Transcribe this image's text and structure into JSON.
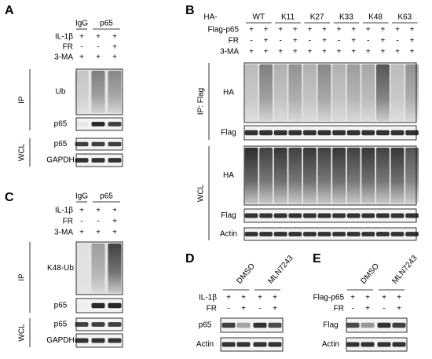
{
  "panels": [
    {
      "label": "A",
      "headers": [
        "IgG",
        "p65"
      ],
      "rows": [
        {
          "name": "IL-1β",
          "signs": [
            "+",
            "+",
            "+"
          ]
        },
        {
          "name": "FR",
          "signs": [
            "-",
            "-",
            "+"
          ]
        },
        {
          "name": "3-MA",
          "signs": [
            "+",
            "+",
            "+"
          ]
        }
      ],
      "groups": [
        {
          "name": "IP",
          "blots": [
            "Ub",
            "p65"
          ]
        },
        {
          "name": "WCL",
          "blots": [
            "p65",
            "GAPDH"
          ]
        }
      ]
    },
    {
      "label": "B",
      "header_prefix": "HA-",
      "headers": [
        "WT",
        "K11",
        "K27",
        "K33",
        "K48",
        "K63"
      ],
      "rows": [
        {
          "name": "Flag-p65",
          "signs": [
            "+",
            "+",
            "+",
            "+",
            "+",
            "+",
            "+",
            "+",
            "+",
            "+",
            "+",
            "+"
          ]
        },
        {
          "name": "FR",
          "signs": [
            "-",
            "+",
            "-",
            "+",
            "-",
            "+",
            "-",
            "+",
            "-",
            "+",
            "-",
            "+"
          ]
        },
        {
          "name": "3-MA",
          "signs": [
            "+",
            "+",
            "+",
            "+",
            "+",
            "+",
            "+",
            "+",
            "+",
            "+",
            "+",
            "+"
          ]
        }
      ],
      "groups": [
        {
          "name": "IP: Flag",
          "blots": [
            "HA",
            "Flag"
          ]
        },
        {
          "name": "WCL",
          "blots": [
            "HA",
            "Flag",
            "Actin"
          ]
        }
      ]
    },
    {
      "label": "C",
      "headers": [
        "IgG",
        "p65"
      ],
      "rows": [
        {
          "name": "IL-1β",
          "signs": [
            "+",
            "+",
            "+"
          ]
        },
        {
          "name": "FR",
          "signs": [
            "-",
            "-",
            "+"
          ]
        },
        {
          "name": "3-MA",
          "signs": [
            "+",
            "+",
            "+"
          ]
        }
      ],
      "groups": [
        {
          "name": "IP",
          "blots": [
            "K48-Ub",
            "p65"
          ]
        },
        {
          "name": "WCL",
          "blots": [
            "p65",
            "GAPDH"
          ]
        }
      ]
    },
    {
      "label": "D",
      "headers": [
        "DMSO",
        "MLN7243"
      ],
      "rows": [
        {
          "name": "IL-1β",
          "signs": [
            "+",
            "+",
            "+",
            "+"
          ]
        },
        {
          "name": "FR",
          "signs": [
            "-",
            "+",
            "-",
            "+"
          ]
        }
      ],
      "groups": [
        {
          "name": null,
          "blots": [
            "p65",
            "Actin"
          ]
        }
      ]
    },
    {
      "label": "E",
      "headers": [
        "DMSO",
        "MLN7243"
      ],
      "rows": [
        {
          "name": "Flag-p65",
          "signs": [
            "+",
            "+",
            "+",
            "+"
          ]
        },
        {
          "name": "FR",
          "signs": [
            "-",
            "+",
            "-",
            "+"
          ]
        }
      ],
      "groups": [
        {
          "name": null,
          "blots": [
            "Flag",
            "Actin"
          ]
        }
      ]
    }
  ]
}
